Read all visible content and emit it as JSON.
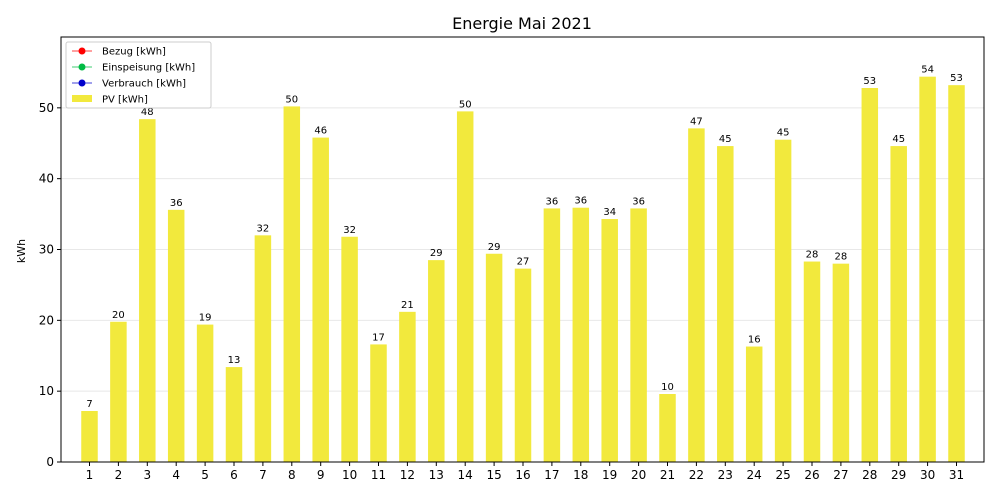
{
  "chart_data": {
    "type": "bar",
    "title": "Energie Mai 2021",
    "xlabel": "",
    "ylabel": "kWh",
    "ylim": [
      0,
      60
    ],
    "yticks": [
      0,
      10,
      20,
      30,
      40,
      50
    ],
    "grid": "horizontal",
    "legend_position": "top-left",
    "categories": [
      "1",
      "2",
      "3",
      "4",
      "5",
      "6",
      "7",
      "8",
      "9",
      "10",
      "11",
      "12",
      "13",
      "14",
      "15",
      "16",
      "17",
      "18",
      "19",
      "20",
      "21",
      "22",
      "23",
      "24",
      "25",
      "26",
      "27",
      "28",
      "29",
      "30",
      "31"
    ],
    "series": [
      {
        "name": "PV [kWh]",
        "type": "bar",
        "color": "#f2e93d",
        "values": [
          7.2,
          19.8,
          48.4,
          35.6,
          19.4,
          13.4,
          32.0,
          50.2,
          45.8,
          31.8,
          16.6,
          21.2,
          28.5,
          49.5,
          29.4,
          27.3,
          35.8,
          35.9,
          34.3,
          35.8,
          9.6,
          47.1,
          44.6,
          16.3,
          45.5,
          28.3,
          28.0,
          52.8,
          44.6,
          54.4,
          53.2
        ],
        "labels": [
          "7",
          "20",
          "48",
          "36",
          "19",
          "13",
          "32",
          "50",
          "46",
          "32",
          "17",
          "21",
          "29",
          "50",
          "29",
          "27",
          "36",
          "36",
          "34",
          "36",
          "10",
          "47",
          "45",
          "16",
          "45",
          "28",
          "28",
          "53",
          "45",
          "54",
          "53"
        ]
      }
    ],
    "legend": [
      {
        "name": "Bezug [kWh]",
        "marker": "line-dot",
        "color": "#ff0000"
      },
      {
        "name": "Einspeisung [kWh]",
        "marker": "line-dot",
        "color": "#00bb44"
      },
      {
        "name": "Verbrauch [kWh]",
        "marker": "line-dot",
        "color": "#0000cc"
      },
      {
        "name": "PV [kWh]",
        "marker": "bar",
        "color": "#f2e93d"
      }
    ]
  }
}
